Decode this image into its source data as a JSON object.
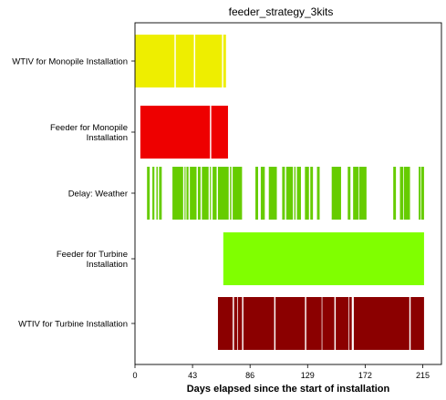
{
  "chart_data": {
    "type": "gantt",
    "title": "feeder_strategy_3kits",
    "xlabel": "Days elapsed since the start of installation",
    "ylabel": "",
    "xlim": [
      0,
      229
    ],
    "xticks": [
      0,
      43,
      86,
      129,
      172,
      215
    ],
    "grid": false,
    "legend": "none",
    "series": [
      {
        "name": "WTIV for Monopile Installation",
        "label_lines": [
          "WTIV for Monopile Installation"
        ],
        "color": "#eeee00",
        "intervals": [
          [
            0,
            29.5
          ],
          [
            30.5,
            44
          ],
          [
            45,
            65
          ],
          [
            66,
            68
          ]
        ]
      },
      {
        "name": "Feeder for Monopile Installation",
        "label_lines": [
          "Feeder for Monopile",
          "Installation"
        ],
        "color": "#ee0000",
        "intervals": [
          [
            4,
            56
          ],
          [
            57,
            69.5
          ]
        ]
      },
      {
        "name": "Delay: Weather",
        "label_lines": [
          "Delay: Weather"
        ],
        "color": "#66cc00",
        "intervals": [
          [
            9,
            11
          ],
          [
            13,
            14.5
          ],
          [
            16,
            17
          ],
          [
            18,
            20
          ],
          [
            28,
            36
          ],
          [
            37,
            37.8
          ],
          [
            38.5,
            40
          ],
          [
            41,
            46
          ],
          [
            47,
            49
          ],
          [
            50,
            55
          ],
          [
            56,
            56.8
          ],
          [
            58,
            61
          ],
          [
            62,
            70
          ],
          [
            71,
            72
          ],
          [
            73,
            80
          ],
          [
            90,
            92
          ],
          [
            94,
            97
          ],
          [
            100,
            106
          ],
          [
            110,
            112
          ],
          [
            113,
            118
          ],
          [
            119,
            120
          ],
          [
            121,
            124
          ],
          [
            127,
            130
          ],
          [
            131,
            133
          ],
          [
            136,
            138
          ],
          [
            147,
            154
          ],
          [
            159,
            161
          ],
          [
            163,
            167
          ],
          [
            167.5,
            173
          ],
          [
            193,
            195
          ],
          [
            198,
            200.5
          ],
          [
            201,
            205.5
          ],
          [
            212,
            213.5
          ],
          [
            214,
            216
          ]
        ]
      },
      {
        "name": "Feeder for Turbine Installation",
        "label_lines": [
          "Feeder for Turbine",
          "Installation"
        ],
        "color": "#80ff00",
        "intervals": [
          [
            66,
            216
          ]
        ]
      },
      {
        "name": "WTIV for Turbine Installation",
        "label_lines": [
          "WTIV for Turbine Installation"
        ],
        "color": "#8b0000",
        "intervals": [
          [
            62,
            73
          ],
          [
            74,
            76.5
          ],
          [
            77,
            80
          ],
          [
            81,
            104
          ],
          [
            105,
            127
          ],
          [
            128,
            139.5
          ],
          [
            140,
            149
          ],
          [
            150,
            159.5
          ],
          [
            160,
            162
          ],
          [
            163.5,
            205
          ],
          [
            206,
            216
          ]
        ]
      }
    ]
  }
}
